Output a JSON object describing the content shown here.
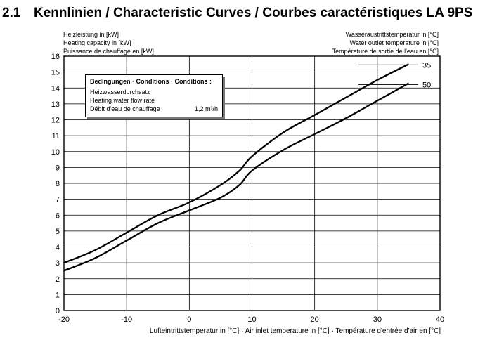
{
  "heading": {
    "number": "2.1",
    "title": "Kennlinien / Characteristic Curves / Courbes caractéristiques LA 9PS"
  },
  "y_axis_labels": [
    "Heizleistung in [kW]",
    "Heating capacity in [kW]",
    "Puissance de chauffage en [kW]"
  ],
  "right_axis_labels": [
    "Wasseraustrittstemperatur in [°C]",
    "Water outlet temperature in [°C]",
    "Température de sortie de l'eau en [°C]"
  ],
  "x_axis_label": "Lufteintrittstemperatur in [°C] · Air inlet temperature in [°C] · Température d'entrée d'air en [°C]",
  "conditions": {
    "title": "Bedingungen · Conditions · Conditions :",
    "line1": "Heizwasserdurchsatz",
    "line2": "Heating water flow rate",
    "line3": "Débit d'eau de chauffage",
    "value": "1,2 m³/h"
  },
  "colors": {
    "curve": "#000000",
    "grid": "#000000",
    "shadow": "#777777"
  },
  "chart_data": {
    "type": "line",
    "xlim": [
      -20,
      40
    ],
    "ylim": [
      0,
      16
    ],
    "xticks": [
      -20,
      -10,
      0,
      10,
      20,
      30,
      40
    ],
    "yticks": [
      0,
      1,
      2,
      3,
      4,
      5,
      6,
      7,
      8,
      9,
      10,
      11,
      12,
      13,
      14,
      15,
      16
    ],
    "grid": true,
    "series": [
      {
        "name": "35",
        "x": [
          -20,
          -15,
          -10,
          -5,
          0,
          5,
          8,
          10,
          15,
          20,
          25,
          30,
          35
        ],
        "y": [
          3.0,
          3.8,
          4.9,
          6.0,
          6.8,
          7.9,
          8.8,
          9.7,
          11.2,
          12.3,
          13.4,
          14.5,
          15.5
        ]
      },
      {
        "name": "50",
        "x": [
          -20,
          -15,
          -10,
          -5,
          0,
          5,
          8,
          10,
          15,
          20,
          25,
          30,
          35
        ],
        "y": [
          2.5,
          3.3,
          4.4,
          5.5,
          6.3,
          7.1,
          7.9,
          8.8,
          10.1,
          11.1,
          12.1,
          13.2,
          14.3
        ]
      }
    ]
  }
}
